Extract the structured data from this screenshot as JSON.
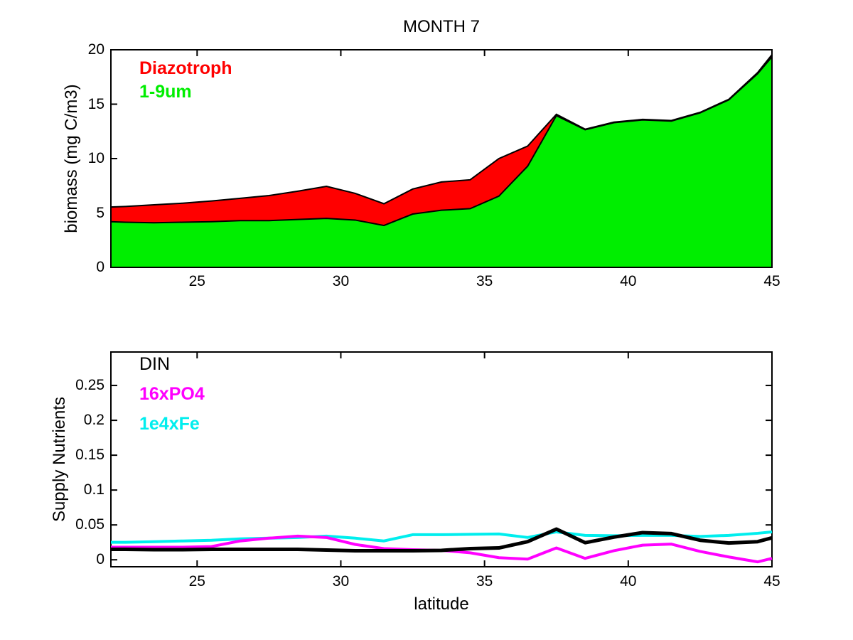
{
  "figure": {
    "background": "#ffffff"
  },
  "chart_data": [
    {
      "id": "biomass",
      "type": "area",
      "title": "MONTH 7",
      "xlabel": "",
      "ylabel": "biomass (mg C/m3)",
      "xlim": [
        22,
        45
      ],
      "ylim": [
        0,
        20
      ],
      "xticks": [
        25,
        30,
        35,
        40,
        45
      ],
      "xtick_labels": [
        "25",
        "30",
        "35",
        "40",
        "45"
      ],
      "yticks": [
        0,
        5,
        10,
        15,
        20
      ],
      "ytick_labels": [
        "0",
        "5",
        "10",
        "15",
        "20"
      ],
      "grid": false,
      "outline_color": "#000000",
      "x": [
        22,
        22.5,
        23.5,
        24.5,
        25.5,
        26.5,
        27.5,
        28.5,
        29.5,
        30.5,
        31.5,
        32.5,
        33.5,
        34.5,
        35.5,
        36.5,
        37.5,
        38.5,
        39.5,
        40.5,
        41.5,
        42.5,
        43.5,
        44.5,
        45
      ],
      "series": [
        {
          "name": "1-9um",
          "color": "#00ee00",
          "values": [
            4.2,
            4.15,
            4.1,
            4.15,
            4.2,
            4.3,
            4.3,
            4.4,
            4.5,
            4.35,
            3.85,
            4.9,
            5.25,
            5.4,
            6.55,
            9.3,
            13.95,
            12.65,
            13.3,
            13.55,
            13.45,
            14.2,
            15.4,
            17.8,
            19.35
          ]
        },
        {
          "name": "Diazotroph",
          "color": "#ff0000",
          "values": [
            1.35,
            1.45,
            1.65,
            1.75,
            1.9,
            2.05,
            2.3,
            2.6,
            2.95,
            2.45,
            2.0,
            2.3,
            2.6,
            2.65,
            3.45,
            1.85,
            0.12,
            0.05,
            0.05,
            0.05,
            0.05,
            0.05,
            0.05,
            0.1,
            0.2
          ]
        }
      ],
      "legend": [
        {
          "label": "Diazotroph",
          "color": "#ff0000",
          "weight": "bold"
        },
        {
          "label": "1-9um",
          "color": "#00ee00",
          "weight": "bold"
        }
      ],
      "legend_position": "top-left-inside"
    },
    {
      "id": "nutrients",
      "type": "line",
      "title": "",
      "xlabel": "latitude",
      "ylabel": "Supply Nutrients",
      "xlim": [
        22,
        45
      ],
      "ylim": [
        -0.01,
        0.298
      ],
      "xticks": [
        25,
        30,
        35,
        40,
        45
      ],
      "xtick_labels": [
        "25",
        "30",
        "35",
        "40",
        "45"
      ],
      "yticks": [
        0,
        0.05,
        0.1,
        0.15,
        0.2,
        0.25
      ],
      "ytick_labels": [
        "0",
        "0.05",
        "0.1",
        "0.15",
        "0.2",
        "0.25"
      ],
      "grid": false,
      "x": [
        22,
        22.5,
        23.5,
        24.5,
        25.5,
        26.5,
        27.5,
        28.5,
        29.5,
        30.5,
        31.5,
        32.5,
        33.5,
        34.5,
        35.5,
        36.5,
        37.5,
        38.5,
        39.5,
        40.5,
        41.5,
        42.5,
        43.5,
        44.5,
        45
      ],
      "series": [
        {
          "name": "1e4xFe",
          "color": "#00eeee",
          "width": 4,
          "values": [
            0.025,
            0.025,
            0.026,
            0.027,
            0.028,
            0.03,
            0.031,
            0.032,
            0.034,
            0.031,
            0.027,
            0.036,
            0.036,
            0.0365,
            0.037,
            0.032,
            0.04,
            0.035,
            0.0345,
            0.035,
            0.035,
            0.0335,
            0.035,
            0.038,
            0.04
          ]
        },
        {
          "name": "16xPO4",
          "color": "#ff00ff",
          "width": 4,
          "values": [
            0.018,
            0.018,
            0.018,
            0.018,
            0.019,
            0.027,
            0.031,
            0.034,
            0.032,
            0.022,
            0.016,
            0.0145,
            0.0135,
            0.01,
            0.003,
            0.001,
            0.017,
            0.002,
            0.013,
            0.021,
            0.0225,
            0.012,
            0.004,
            -0.003,
            0.002
          ]
        },
        {
          "name": "DIN",
          "color": "#000000",
          "width": 5,
          "values": [
            0.015,
            0.015,
            0.0145,
            0.0145,
            0.015,
            0.015,
            0.015,
            0.015,
            0.014,
            0.013,
            0.013,
            0.013,
            0.0135,
            0.016,
            0.017,
            0.026,
            0.044,
            0.0245,
            0.0325,
            0.039,
            0.0375,
            0.028,
            0.024,
            0.026,
            0.0315
          ]
        }
      ],
      "legend": [
        {
          "label": "DIN",
          "color": "#000000",
          "weight": "normal"
        },
        {
          "label": "16xPO4",
          "color": "#ff00ff",
          "weight": "bold"
        },
        {
          "label": "1e4xFe",
          "color": "#00eeee",
          "weight": "bold"
        }
      ],
      "legend_position": "top-left-inside"
    }
  ]
}
